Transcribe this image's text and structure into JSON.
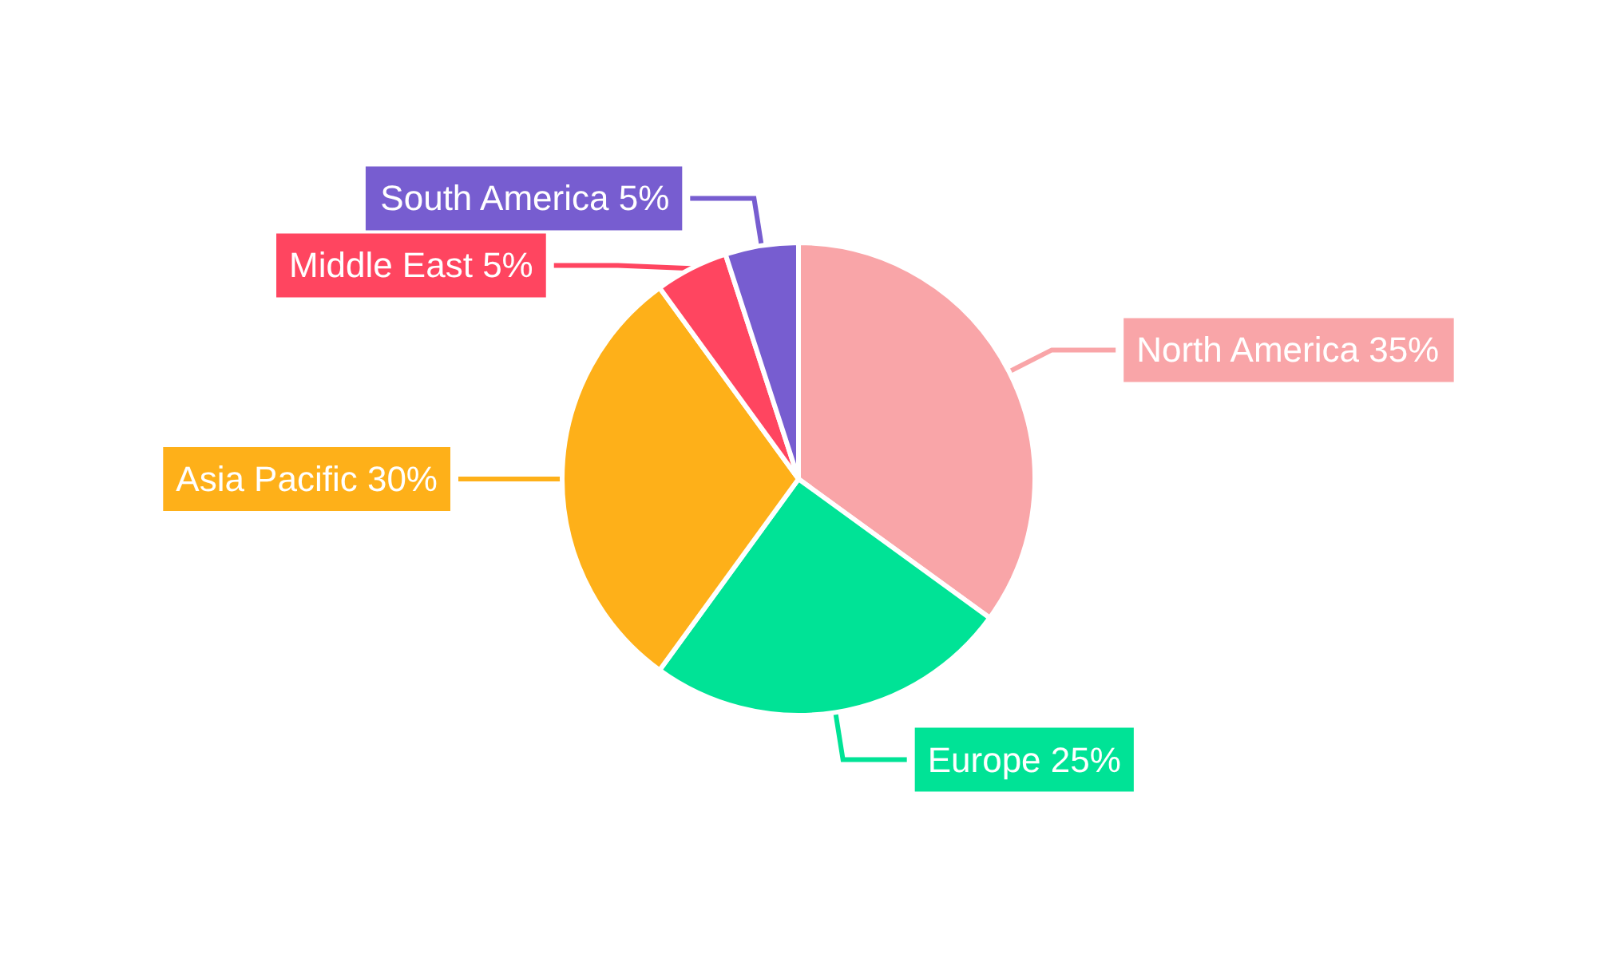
{
  "chart_data": {
    "type": "pie",
    "categories": [
      "North America",
      "Europe",
      "Asia Pacific",
      "Middle East",
      "South America"
    ],
    "values": [
      35,
      25,
      30,
      5,
      5
    ],
    "value_labels": [
      "35%",
      "25%",
      "30%",
      "5%",
      "5%"
    ],
    "colors": [
      "#f9a5a8",
      "#00e396",
      "#feb019",
      "#ff4560",
      "#775dd0"
    ],
    "legend": false
  }
}
